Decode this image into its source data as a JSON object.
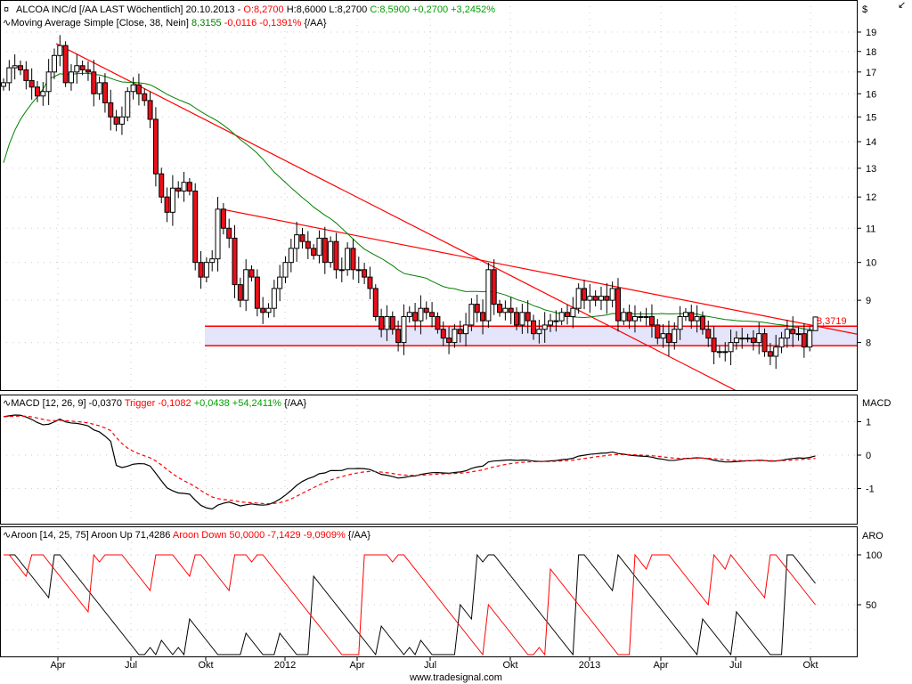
{
  "price_legend": {
    "title": "ALCOA INC/d [/AA LAST Wöchentlich] 20.10.2013 -",
    "open": "O:8,2700",
    "high_low": "H:8,6000 L:8,2700",
    "close": "C:8,5900 +0,2700 +3,2452%"
  },
  "ma_legend": {
    "name": "Moving Average Simple [Close, 38, Nein]",
    "value": "8,3155",
    "change": "-0,0116 -0,1391%",
    "suffix": "{/AA}"
  },
  "macd_legend": {
    "name": "MACD [12, 26, 9] -0,0370",
    "trigger": "Trigger -0,1082",
    "change": "+0,0438 +54,2411%",
    "suffix": "{/AA}"
  },
  "aroon_legend": {
    "name": "Aroon [14, 25, 75] Aroon Up 71,4286",
    "down": "Aroon Down 50,0000 -7,1429 -9,0909%",
    "suffix": "{/AA}"
  },
  "axes": {
    "price_unit": "$",
    "price_ticks": [
      "19",
      "18",
      "17",
      "16",
      "15",
      "14",
      "13",
      "12",
      "11",
      "10",
      "9",
      "8"
    ],
    "macd_unit": "MACD",
    "macd_ticks": [
      "1",
      "0",
      "-1"
    ],
    "aroon_unit": "ARO",
    "aroon_ticks": [
      "100",
      "50"
    ],
    "x_ticks": [
      "Apr",
      "Jul",
      "Okt",
      "2012",
      "Apr",
      "Jul",
      "Okt",
      "2013",
      "Apr",
      "Jul",
      "Okt"
    ]
  },
  "support_label": "8,3719",
  "footer": "www.tradesignal.com",
  "colors": {
    "up_candle": "#ffffff",
    "down_candle": "#e8101a",
    "moving_average": "#008000",
    "trendline": "#ff0000",
    "support_band": "#e4e4fa",
    "macd": "#000000",
    "trigger": "#ff0000",
    "aroon_up": "#000000",
    "aroon_down": "#ff0000",
    "positive": "#00a000",
    "negative": "#ff0000"
  },
  "chart_data": {
    "type": "candlestick",
    "interval": "weekly",
    "scale": "log",
    "ylim": [
      7.4,
      19.6
    ],
    "last_bar": {
      "open": 8.27,
      "high": 8.6,
      "low": 8.27,
      "close": 8.59
    },
    "close": [
      16.5,
      17.2,
      17.3,
      17.1,
      16.6,
      16.3,
      15.9,
      16.1,
      17.0,
      17.8,
      18.3,
      16.5,
      17.0,
      17.3,
      17.1,
      17.0,
      16.0,
      16.5,
      15.6,
      15.0,
      14.7,
      15.0,
      16.1,
      16.4,
      16.0,
      15.7,
      14.9,
      12.8,
      12.0,
      11.5,
      12.3,
      12.2,
      12.5,
      12.2,
      10.0,
      9.6,
      10.0,
      10.1,
      11.6,
      11.0,
      10.7,
      9.4,
      9.0,
      9.8,
      9.6,
      8.8,
      8.7,
      8.8,
      9.3,
      9.6,
      10.0,
      10.4,
      10.8,
      10.6,
      10.4,
      10.2,
      10.7,
      10.0,
      10.6,
      9.8,
      9.8,
      10.4,
      9.8,
      9.8,
      9.6,
      9.3,
      8.6,
      8.3,
      8.6,
      8.3,
      8.0,
      8.6,
      8.7,
      8.5,
      8.8,
      8.7,
      8.6,
      8.3,
      8.1,
      8.0,
      8.3,
      8.2,
      8.4,
      8.9,
      8.7,
      8.5,
      9.8,
      8.9,
      8.7,
      8.8,
      8.7,
      8.4,
      8.7,
      8.5,
      8.2,
      8.3,
      8.4,
      8.5,
      8.5,
      8.7,
      8.6,
      8.8,
      9.3,
      9.0,
      9.1,
      9.0,
      9.1,
      9.0,
      9.3,
      8.5,
      8.7,
      8.5,
      8.6,
      8.6,
      8.6,
      8.4,
      8.1,
      8.2,
      8.0,
      8.3,
      8.6,
      8.7,
      8.5,
      8.6,
      8.3,
      8.1,
      7.8,
      7.8,
      7.8,
      8.0,
      8.1,
      8.1,
      8.1,
      8.0,
      8.2,
      7.8,
      7.7,
      7.9,
      8.1,
      8.3,
      8.2,
      8.2,
      7.9,
      8.27,
      8.59
    ],
    "moving_average_period": 38,
    "macd_params": [
      12,
      26,
      9
    ],
    "aroon_period": 14,
    "macd_ylim": [
      -1.6,
      1.4
    ],
    "aroon_ylim": [
      0,
      110
    ],
    "trendlines": [
      {
        "from_price": 18.4,
        "to_price": 7.0
      },
      {
        "from_price": 11.6,
        "to_price": 8.19
      }
    ],
    "support_zone": {
      "upper": 8.3719,
      "lower": 7.93
    }
  }
}
